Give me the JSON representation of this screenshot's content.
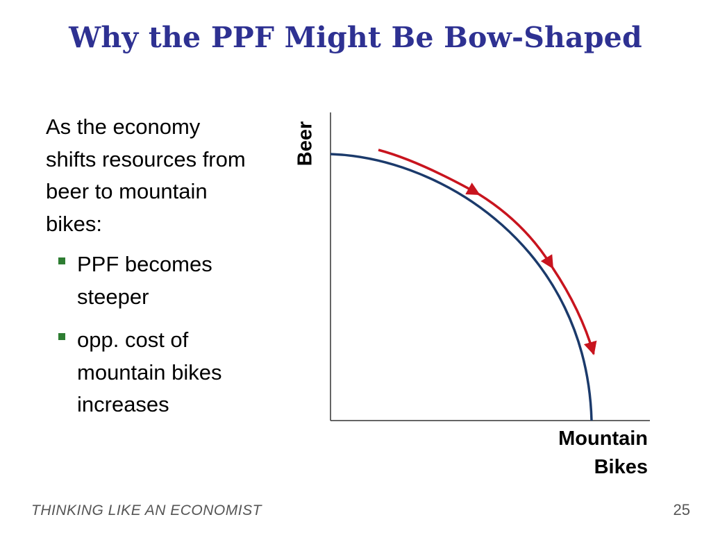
{
  "title": "Why the PPF Might Be Bow-Shaped",
  "intro_text": "As the economy shifts resources from beer to mountain bikes:",
  "bullets": [
    {
      "label": "PPF becomes steeper"
    },
    {
      "label": "opp. cost of mountain bikes increases"
    }
  ],
  "diagram": {
    "y_axis_label": "Beer",
    "x_axis_label_line1": "Mountain",
    "x_axis_label_line2": "Bikes",
    "curve_color": "#1b3a6b",
    "arrow_color": "#c8141e",
    "arrow_count": 3
  },
  "footer": {
    "text": "THINKING LIKE AN ECONOMIST",
    "page_number": "25"
  },
  "colors": {
    "title": "#2e3192",
    "bullet_marker": "#2e7d32",
    "footer": "#555555"
  }
}
